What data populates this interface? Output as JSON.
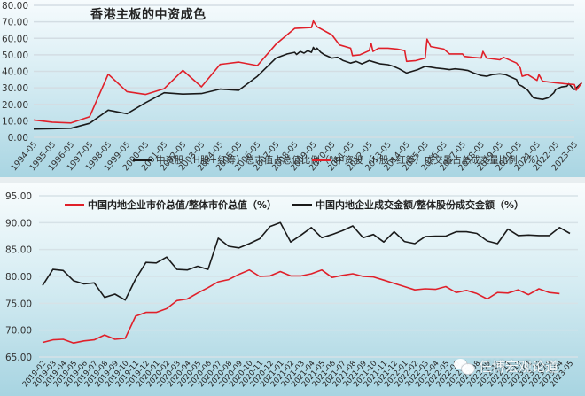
{
  "chart_data": [
    {
      "type": "line",
      "title": "香港主板的中资成色",
      "xlabel": "",
      "ylabel": "",
      "ylim": [
        0,
        80
      ],
      "yticks": [
        "0.00",
        "10.00",
        "20.00",
        "30.00",
        "40.00",
        "50.00",
        "60.00",
        "70.00",
        "80.00"
      ],
      "xticks": [
        "1994-05",
        "1995-05",
        "1996-05",
        "1997-05",
        "1998-05",
        "1999-05",
        "2000-05",
        "2001-05",
        "2002-05",
        "2003-05",
        "2004-05",
        "2005-05",
        "2006-05",
        "2007-05",
        "2008-05",
        "2009-05",
        "2010-05",
        "2011-05",
        "2012-05",
        "2013-05",
        "2014-05",
        "2015-05",
        "2016-05",
        "2017-05",
        "2018-05",
        "2019-05",
        "2020-05",
        "2021-05",
        "2022-05",
        "2023-05"
      ],
      "grid": true,
      "legend_position": "bottom",
      "series": [
        {
          "name": "中资股（H股+红筹）总市值占总值比例（%）",
          "color": "#1a1a1a",
          "x": [
            1994,
            1995,
            1996,
            1997,
            1998,
            1999,
            2000,
            2001,
            2002,
            2003,
            2004,
            2005,
            2006,
            2007,
            2007.6,
            2008,
            2008.1,
            2008.3,
            2008.5,
            2008.7,
            2008.9,
            2009,
            2009.1,
            2009.2,
            2009.4,
            2009.6,
            2010,
            2010.3,
            2010.6,
            2011,
            2011.3,
            2011.6,
            2012,
            2012.3,
            2012.6,
            2013,
            2013.3,
            2013.6,
            2014,
            2014.3,
            2014.6,
            2015,
            2015.3,
            2015.6,
            2016,
            2016.3,
            2016.6,
            2017,
            2017.3,
            2017.6,
            2018,
            2018.3,
            2018.6,
            2019,
            2019.3,
            2019.6,
            2019.9,
            2020,
            2020.2,
            2020.5,
            2020.8,
            2021,
            2021.3,
            2021.6,
            2021.9,
            2022,
            2022.3,
            2022.6,
            2022.7,
            2022.9,
            2023,
            2023.2,
            2023.4
          ],
          "values": [
            5.0,
            5.2,
            5.5,
            8.5,
            16.5,
            14.3,
            21.0,
            27.0,
            26.2,
            26.5,
            29.2,
            28.5,
            37.0,
            48.0,
            50.5,
            51.5,
            50.2,
            52.0,
            51.0,
            52.5,
            51.5,
            54.5,
            53.0,
            54.0,
            51.5,
            50.0,
            48.0,
            48.5,
            46.5,
            45.0,
            46.0,
            44.5,
            46.5,
            45.5,
            44.5,
            44.0,
            43.0,
            41.5,
            39.0,
            40.0,
            41.0,
            43.0,
            42.5,
            42.0,
            41.5,
            41.0,
            41.5,
            41.0,
            40.5,
            39.0,
            37.5,
            37.0,
            38.0,
            38.5,
            38.0,
            36.5,
            35.0,
            32.0,
            31.0,
            28.5,
            24.0,
            23.5,
            23.0,
            24.0,
            27.0,
            29.0,
            30.5,
            31.0,
            32.5,
            30.0,
            29.0,
            31.0,
            33.0
          ]
        },
        {
          "name": "中资股（H股+红筹）成交量占总成交量比例（%）",
          "color": "#e0202a",
          "x": [
            1994,
            1995,
            1996,
            1997,
            1998,
            1999,
            2000,
            2001,
            2002,
            2003,
            2004,
            2005,
            2006,
            2007,
            2008,
            2008.9,
            2009,
            2009.2,
            2010,
            2010.4,
            2011,
            2011.1,
            2011.5,
            2012,
            2012.1,
            2012.2,
            2012.5,
            2013,
            2013.5,
            2013.9,
            2014,
            2014.5,
            2015,
            2015.1,
            2015.3,
            2016,
            2016.3,
            2017,
            2017.1,
            2017.5,
            2018,
            2018.1,
            2018.3,
            2019,
            2019.2,
            2019.9,
            2020.1,
            2020.2,
            2020.5,
            2021,
            2021.1,
            2021.3,
            2022,
            2022.5,
            2023,
            2023.1,
            2023.4
          ],
          "values": [
            10.5,
            9.2,
            8.7,
            12.5,
            38.3,
            27.7,
            26.0,
            29.5,
            40.6,
            30.6,
            44.2,
            45.6,
            43.5,
            56.5,
            66.0,
            66.5,
            70.5,
            67.0,
            62.0,
            56.0,
            54.0,
            49.5,
            50.0,
            52.5,
            57.0,
            52.0,
            54.0,
            54.0,
            53.5,
            52.5,
            46.0,
            46.5,
            48.0,
            59.5,
            55.0,
            53.5,
            50.5,
            50.5,
            49.0,
            48.5,
            48.0,
            52.0,
            48.0,
            47.0,
            48.5,
            45.0,
            42.0,
            37.0,
            38.0,
            34.5,
            38.0,
            34.0,
            33.0,
            32.5,
            32.0,
            28.5,
            33.0
          ]
        }
      ]
    },
    {
      "type": "line",
      "title": "",
      "xlabel": "",
      "ylabel": "",
      "ylim": [
        65,
        95
      ],
      "yticks": [
        "65.00",
        "70.00",
        "75.00",
        "80.00",
        "85.00",
        "90.00",
        "95.00"
      ],
      "x": [
        "2019-02",
        "2019-03",
        "2019-04",
        "2019-05",
        "2019-06",
        "2019-07",
        "2019-08",
        "2019-09",
        "2019-10",
        "2019-11",
        "2019-12",
        "2020-01",
        "2020-02",
        "2020-03",
        "2020-04",
        "2020-05",
        "2020-06",
        "2020-07",
        "2020-08",
        "2020-09",
        "2020-10",
        "2020-11",
        "2020-12",
        "2021-01",
        "2021-02",
        "2021-03",
        "2021-04",
        "2021-05",
        "2021-06",
        "2021-07",
        "2021-08",
        "2021-09",
        "2021-10",
        "2021-11",
        "2021-12",
        "2022-01",
        "2022-02",
        "2022-03",
        "2022-04",
        "2022-05",
        "2022-06",
        "2022-07",
        "2022-08",
        "2022-09",
        "2022-10",
        "2022-11",
        "2022-12",
        "2023-01",
        "2023-02",
        "2023-03",
        "2023-04",
        "2023-05"
      ],
      "grid": true,
      "legend_position": "top",
      "series": [
        {
          "name": "中国内地企业市价总值/整体市价总值（%）",
          "color": "#e0202a",
          "values": [
            67.7,
            68.2,
            68.3,
            67.6,
            68.0,
            68.2,
            69.1,
            68.3,
            68.5,
            72.6,
            73.3,
            73.3,
            74.0,
            75.5,
            75.8,
            76.9,
            77.9,
            79.0,
            79.4,
            80.4,
            81.2,
            80.0,
            80.1,
            80.9,
            80.1,
            80.1,
            80.5,
            81.2,
            79.8,
            80.2,
            80.5,
            80.0,
            79.9,
            79.3,
            78.7,
            78.1,
            77.5,
            77.7,
            77.6,
            78.1,
            77.0,
            77.4,
            76.8,
            75.8,
            77.0,
            76.9,
            77.5,
            76.6,
            77.7,
            77.0,
            76.8,
            null
          ]
        },
        {
          "name": "中国内地企业成交金额/整体股份成交金额（%）",
          "color": "#1a1a1a",
          "values": [
            78.3,
            81.3,
            81.1,
            79.2,
            78.6,
            78.8,
            76.1,
            76.7,
            75.6,
            79.5,
            82.6,
            82.5,
            83.6,
            81.3,
            81.2,
            81.9,
            81.3,
            87.1,
            85.6,
            85.3,
            86.1,
            87.0,
            89.3,
            90.0,
            86.4,
            87.7,
            89.1,
            87.2,
            87.8,
            88.5,
            89.4,
            87.2,
            87.8,
            86.4,
            88.3,
            86.5,
            86.1,
            87.4,
            87.5,
            87.5,
            88.3,
            88.3,
            88.0,
            86.6,
            86.1,
            88.8,
            87.6,
            87.7,
            87.6,
            87.6,
            89.1,
            88.0
          ]
        }
      ]
    }
  ],
  "top_chart": {
    "title": "香港主板的中资成色",
    "legend": [
      {
        "label": "中资股（H股+红筹）总市值占总值比例（%）",
        "color": "#1a1a1a"
      },
      {
        "label": "中资股（H股+红筹）成交量占总成交量比例（%）",
        "color": "#e0202a"
      }
    ]
  },
  "bottom_chart": {
    "legend": [
      {
        "label": "中国内地企业市价总值/整体市价总值（%）",
        "color": "#e0202a"
      },
      {
        "label": "中国内地企业成交金额/整体股份成交金额（%）",
        "color": "#1a1a1a"
      }
    ]
  },
  "watermark": {
    "icon": "wechat-icon",
    "text": "任博宏观论道"
  }
}
